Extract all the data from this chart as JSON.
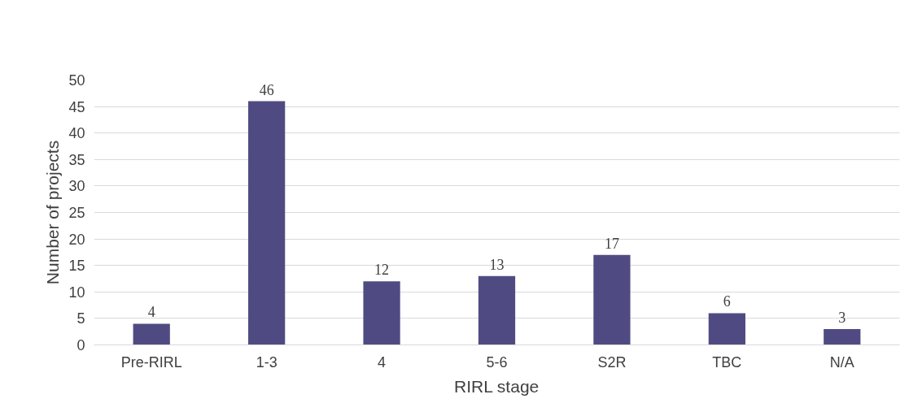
{
  "chart_data": {
    "type": "bar",
    "xlabel": "RIRL stage",
    "ylabel": "Number of projects",
    "categories": [
      "Pre-RIRL",
      "1-3",
      "4",
      "5-6",
      "S2R",
      "TBC",
      "N/A"
    ],
    "values": [
      4,
      46,
      12,
      13,
      17,
      6,
      3
    ],
    "color": "#4f4b82",
    "ylim": [
      0,
      50
    ],
    "yticks": [
      0,
      5,
      10,
      15,
      20,
      25,
      30,
      35,
      40,
      45,
      50
    ],
    "grid": "y",
    "data_labels": true
  }
}
